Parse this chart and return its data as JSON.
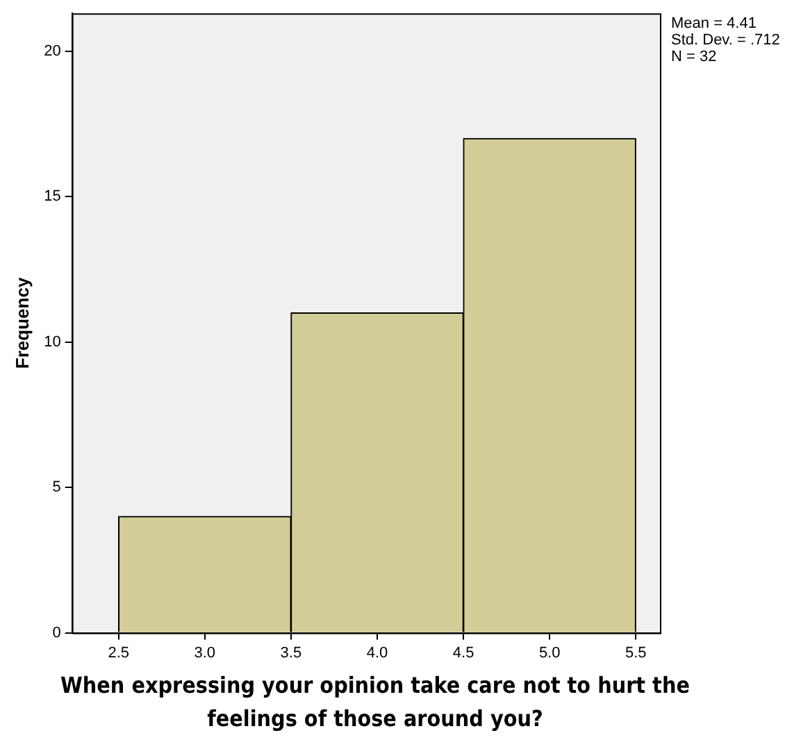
{
  "chart_data": {
    "type": "histogram",
    "xlabel": "When expressing your opinion take care not to hurt the feelings of those around you?",
    "ylabel": "Frequency",
    "bins": [
      2.5,
      3.5,
      4.5,
      5.5
    ],
    "values": [
      4,
      11,
      17
    ],
    "color": "#d3ce97",
    "xlim": [
      2.23,
      5.64
    ],
    "xticks": [
      2.5,
      {
        "value": 3,
        "label": "3.0"
      },
      3.5,
      {
        "value": 4,
        "label": "4.0"
      },
      4.5,
      {
        "value": 5,
        "label": "5.0"
      },
      5.5
    ],
    "ylim": [
      0,
      21.3
    ],
    "yticks": [
      0,
      5,
      10,
      15,
      20
    ],
    "annotations": [
      "Mean = 4.41",
      "Std. Dev. = .712",
      "N = 32"
    ],
    "grid": false,
    "legend": false
  }
}
